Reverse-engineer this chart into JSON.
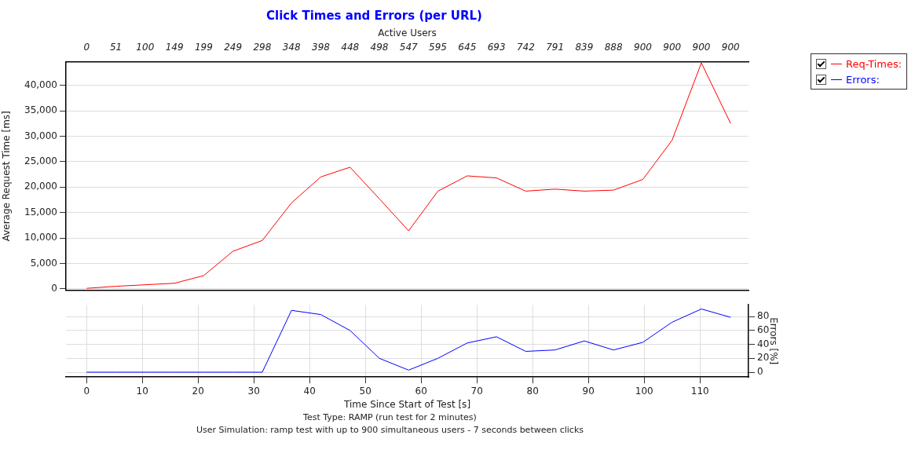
{
  "chart_data": [
    {
      "type": "line",
      "title": "Click Times and Errors (per URL)",
      "x2label": "Active Users",
      "ylabel": "Average Request Time [ms]",
      "categories": [
        "0",
        "51",
        "100",
        "149",
        "199",
        "249",
        "298",
        "348",
        "398",
        "448",
        "498",
        "547",
        "595",
        "645",
        "693",
        "742",
        "791",
        "839",
        "888",
        "900",
        "900",
        "900",
        "900"
      ],
      "ylim": [
        -300,
        44600
      ],
      "yticks": [
        {
          "value": 0,
          "label": "0"
        },
        {
          "value": 5000,
          "label": "5,000"
        },
        {
          "value": 10000,
          "label": "10,000"
        },
        {
          "value": 15000,
          "label": "15,000"
        },
        {
          "value": 20000,
          "label": "20,000"
        },
        {
          "value": 25000,
          "label": "25,000"
        },
        {
          "value": 30000,
          "label": "30,000"
        },
        {
          "value": 35000,
          "label": "35,000"
        },
        {
          "value": 40000,
          "label": "40,000"
        }
      ],
      "grid": "y",
      "marker": "none",
      "line_style": "solid",
      "legend": "right",
      "series": [
        {
          "name": "Req-Times:",
          "color": "#ff0000",
          "values": [
            100,
            500,
            800,
            1100,
            2600,
            7400,
            9500,
            16900,
            22000,
            23900,
            17700,
            11400,
            19200,
            22200,
            21800,
            19200,
            19600,
            19200,
            19400,
            21500,
            29200,
            44400,
            32500
          ]
        }
      ]
    },
    {
      "type": "line",
      "xlabel": "Time Since Start of Test [s]",
      "y2label": "Errors [%]",
      "x": [
        0,
        5.25,
        10.5,
        15.75,
        21,
        26.25,
        31.5,
        36.75,
        42,
        47.25,
        52.5,
        57.75,
        63,
        68.25,
        73.5,
        78.75,
        84,
        89.25,
        94.5,
        99.75,
        105,
        110.25,
        115.5
      ],
      "xlim": [
        -3.7,
        118.7
      ],
      "xticks": [
        0,
        10,
        20,
        30,
        40,
        50,
        60,
        70,
        80,
        90,
        100,
        110
      ],
      "y2lim": [
        -7,
        97
      ],
      "y2ticks": [
        0,
        20,
        40,
        60,
        80
      ],
      "grid": true,
      "marker": "none",
      "line_style": "solid",
      "legend": "right",
      "annotations": [
        "Test Type: RAMP (run test for 2 minutes)",
        "User Simulation: ramp test with up to 900 simultaneous users - 7 seconds between clicks"
      ],
      "series": [
        {
          "name": "Errors:",
          "color": "#0000ff",
          "axis": "y2",
          "values": [
            0,
            0,
            0,
            0,
            0,
            0,
            0,
            89,
            83,
            60,
            20,
            3,
            20,
            42,
            51,
            30,
            32,
            45,
            32,
            43,
            72,
            91,
            79
          ]
        }
      ]
    }
  ]
}
